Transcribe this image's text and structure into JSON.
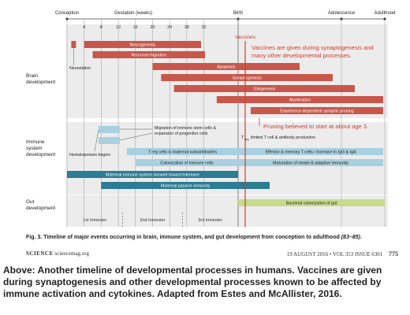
{
  "chart_data": {
    "type": "bar",
    "subtype": "timeline-gantt",
    "x_axis": {
      "top_labels": [
        "Conception",
        "Gestation (weeks)",
        "Birth",
        "Adolescence",
        "Adulthood"
      ],
      "week_ticks": [
        "4",
        "8",
        "12",
        "16",
        "20",
        "24",
        "28",
        "32"
      ],
      "trimesters": [
        "1st trimester",
        "2nd trimester",
        "3rd trimester"
      ]
    },
    "sections": [
      {
        "label": "Brain development"
      },
      {
        "label": "Immune system development"
      },
      {
        "label": "Gut development"
      }
    ],
    "bars": [
      {
        "label": "Neurogenesis",
        "section": "brain",
        "color": "#c8574b",
        "start_week": 4,
        "end": "week 24"
      },
      {
        "label": "Neuronal migration",
        "section": "brain",
        "color": "#c8574b",
        "start_week": 6,
        "end": "week 26"
      },
      {
        "label": "Apoptosis",
        "section": "brain",
        "color": "#c8574b",
        "start_week": 20,
        "end": "postnatal"
      },
      {
        "label": "Synaptogenesis",
        "section": "brain",
        "color": "#c8574b",
        "start_week": 22,
        "end": "postnatal"
      },
      {
        "label": "Gliogenesis",
        "section": "brain",
        "color": "#c8574b",
        "start_week": 25,
        "end": "postnatal"
      },
      {
        "label": "Myelination",
        "section": "brain",
        "color": "#c8574b",
        "start_week": 35,
        "end": "adulthood"
      },
      {
        "label": "Experience-dependent synaptic pruning",
        "section": "brain",
        "color": "#c8574b",
        "start": "birth",
        "end": "adulthood"
      },
      {
        "label": "Hematopoiesis begins",
        "section": "immune",
        "color": "#a9d0e0",
        "start_week": 3,
        "end": "week 8"
      },
      {
        "label": "Migration of immune stem cells & expansion of progenitor cells",
        "section": "immune",
        "color": "#a9d0e0",
        "start_week": 8,
        "end": "week 14"
      },
      {
        "label": "T reg cells & maternal autoantibodies",
        "section": "immune",
        "color": "#a9d0e0",
        "start_week": 14,
        "end": "birth"
      },
      {
        "label": "Colonization of immune cells",
        "section": "immune",
        "color": "#a9d0e0",
        "start_week": 16,
        "end": "birth"
      },
      {
        "label": "Effector & memory T cells / Increase in IgG & IgA",
        "section": "immune",
        "color": "#a9d0e0",
        "start": "birth",
        "end": "adulthood"
      },
      {
        "label": "Maturation of innate & adaptive immunity",
        "section": "immune",
        "color": "#a9d0e0",
        "start": "birth",
        "end": "adulthood"
      },
      {
        "label": "Maternal immune system skewed toward tolerance",
        "section": "immune",
        "color": "#2c7c93",
        "start_week": 0,
        "end": "birth"
      },
      {
        "label": "Maternal passive immunity",
        "section": "immune",
        "color": "#2c7c93",
        "start_week": 8,
        "end": "postnatal"
      },
      {
        "label": "Bacterial colonization of gut",
        "section": "gut",
        "color": "#c4dc8c",
        "start": "birth",
        "end": "adulthood"
      }
    ],
    "annotations": {
      "t_reg_label": "T",
      "t_reg_sub": "reg",
      "t_reg_note": "limited T cell & antibody production",
      "vaccines": "Vaccines",
      "vaccines_note_1": "Vaccines are given during synaptogenesis and",
      "vaccines_note_2": "many other developmental processes.",
      "pruning_note": "Pruning believed to start at about age 3."
    }
  },
  "figure_caption": {
    "text": "Fig. 3. Timeline of major events occurring in brain, immune system, and gut development from conception to adulthood",
    "refs": "(83–85)",
    "end": "."
  },
  "footer": {
    "journal": "SCIENCE",
    "site": "sciencemag.org",
    "issue": "19 AUGUST 2016 • VOL 353 ISSUE 6301",
    "page": "775"
  },
  "post_caption": "Above: Another timeline of developmental processes in humans. Vaccines are given during synaptogenesis and other developmental processes known to be affected by immune activation and cytokines. Adapted from Estes and McAllister, 2016.",
  "colors": {
    "brain": "#c8574b",
    "immune_light": "#a9d0e0",
    "immune_dark": "#2c7c93",
    "gut": "#c4dc8c",
    "annotation": "#d63a2a",
    "panel_bg": "#ffffff"
  }
}
